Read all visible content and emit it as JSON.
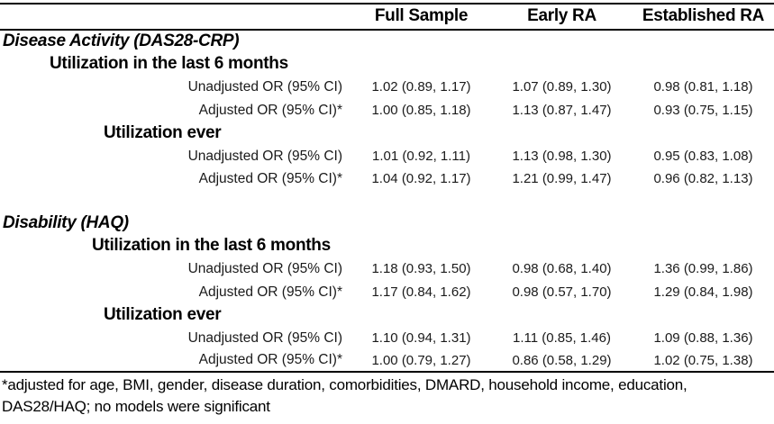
{
  "colors": {
    "text": "#000000",
    "border": "#000000",
    "background": "#ffffff"
  },
  "table": {
    "columns": {
      "label": "",
      "full_sample": "Full Sample",
      "early_ra": "Early RA",
      "established_ra": "Established RA"
    },
    "row_labels": {
      "unadjusted": "Unadjusted OR (95% CI)",
      "adjusted": "Adjusted OR (95% CI)*"
    },
    "sections": [
      {
        "title": "Disease Activity (DAS28-CRP)",
        "groups": [
          {
            "label": "Utilization in the last 6 months",
            "rows": [
              {
                "label": "Unadjusted OR (95% CI)",
                "values": [
                  "1.02 (0.89, 1.17)",
                  "1.07 (0.89, 1.30)",
                  "0.98 (0.81, 1.18)"
                ]
              },
              {
                "label": "Adjusted OR (95% CI)*",
                "values": [
                  "1.00 (0.85, 1.18)",
                  "1.13 (0.87, 1.47)",
                  "0.93 (0.75, 1.15)"
                ]
              }
            ]
          },
          {
            "label": "Utilization ever",
            "rows": [
              {
                "label": "Unadjusted OR (95% CI)",
                "values": [
                  "1.01 (0.92, 1.11)",
                  "1.13 (0.98, 1.30)",
                  "0.95 (0.83, 1.08)"
                ]
              },
              {
                "label": "Adjusted OR (95% CI)*",
                "values": [
                  "1.04 (0.92, 1.17)",
                  "1.21 (0.99, 1.47)",
                  "0.96 (0.82, 1.13)"
                ]
              }
            ]
          }
        ]
      },
      {
        "title": "Disability (HAQ)",
        "groups": [
          {
            "label": "Utilization in the last 6 months",
            "rows": [
              {
                "label": "Unadjusted OR (95% CI)",
                "values": [
                  "1.18 (0.93, 1.50)",
                  "0.98 (0.68, 1.40)",
                  "1.36 (0.99, 1.86)"
                ]
              },
              {
                "label": "Adjusted OR (95% CI)*",
                "values": [
                  "1.17 (0.84, 1.62)",
                  "0.98 (0.57, 1.70)",
                  "1.29 (0.84, 1.98)"
                ]
              }
            ]
          },
          {
            "label": "Utilization ever",
            "rows": [
              {
                "label": "Unadjusted OR (95% CI)",
                "values": [
                  "1.10 (0.94, 1.31)",
                  "1.11 (0.85, 1.46)",
                  "1.09 (0.88, 1.36)"
                ]
              },
              {
                "label": "Adjusted OR (95% CI)*",
                "values": [
                  "1.00 (0.79, 1.27)",
                  "0.86 (0.58, 1.29)",
                  "1.02 (0.75, 1.38)"
                ]
              }
            ]
          }
        ]
      }
    ],
    "footnote": {
      "line1": "*adjusted for age, BMI, gender, disease duration, comorbidities, DMARD, household income, education,",
      "line2": "DAS28/HAQ; no models were significant"
    }
  }
}
